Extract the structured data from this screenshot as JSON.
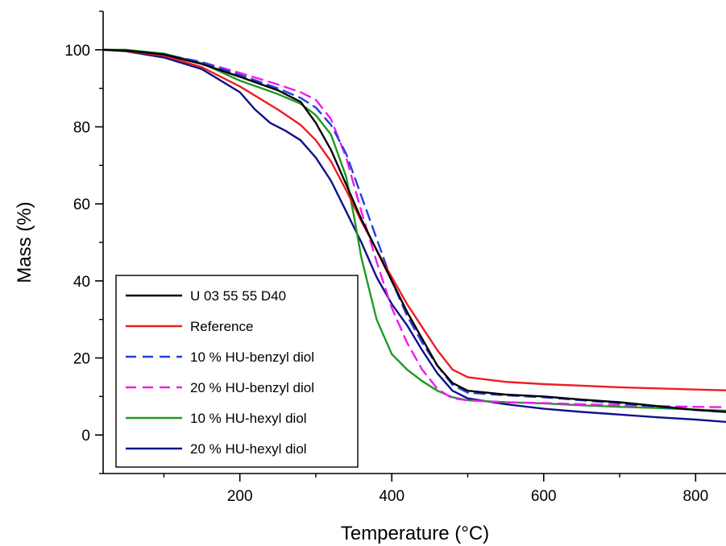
{
  "chart_data": {
    "type": "line",
    "title": "",
    "xlabel": "Temperature (°C)",
    "ylabel": "Mass (%)",
    "xlim": [
      20,
      840
    ],
    "ylim": [
      -10,
      110
    ],
    "xticks": [
      200,
      400,
      600,
      800
    ],
    "yticks": [
      0,
      20,
      40,
      60,
      80,
      100
    ],
    "legend_position": "bottom-left",
    "grid": false,
    "series": [
      {
        "name": "U 03 55 55 D40",
        "color": "#000000",
        "dash": "solid",
        "x": [
          20,
          50,
          100,
          150,
          200,
          250,
          280,
          300,
          320,
          340,
          360,
          380,
          400,
          420,
          440,
          460,
          480,
          500,
          550,
          600,
          650,
          700,
          750,
          800,
          840
        ],
        "y": [
          100,
          99.8,
          98.8,
          96.3,
          93,
          89.5,
          86.5,
          81,
          74,
          65,
          56,
          48,
          40,
          32,
          25,
          18,
          13.5,
          11.5,
          10.5,
          10,
          9.2,
          8.5,
          7.5,
          6.5,
          6
        ]
      },
      {
        "name": "Reference",
        "color": "#ee1c25",
        "dash": "solid",
        "x": [
          20,
          50,
          100,
          150,
          200,
          250,
          280,
          300,
          320,
          340,
          360,
          380,
          400,
          420,
          440,
          460,
          480,
          500,
          550,
          600,
          650,
          700,
          750,
          800,
          840
        ],
        "y": [
          100,
          99.7,
          98.5,
          95.5,
          90.5,
          84.5,
          80.5,
          76.5,
          71,
          63.5,
          55.5,
          48,
          41,
          34,
          28,
          22,
          17,
          15,
          13.8,
          13.2,
          12.8,
          12.4,
          12.1,
          11.8,
          11.6
        ]
      },
      {
        "name": "10 % HU-benzyl diol",
        "color": "#1f3fe0",
        "dash": "dashed",
        "x": [
          20,
          50,
          100,
          150,
          200,
          250,
          280,
          300,
          320,
          340,
          360,
          380,
          400,
          420,
          440,
          460,
          480,
          500,
          550,
          600,
          650,
          700,
          750,
          800,
          840
        ],
        "y": [
          100,
          99.8,
          98.8,
          96.8,
          93.5,
          90,
          87.5,
          85,
          80.5,
          73,
          62,
          51,
          40,
          31,
          24,
          18,
          13,
          11,
          10.3,
          9.8,
          9,
          8.2,
          7.3,
          6.5,
          6
        ]
      },
      {
        "name": "20 % HU-benzyl diol",
        "color": "#ee1cee",
        "dash": "dashed",
        "x": [
          20,
          50,
          100,
          150,
          200,
          250,
          280,
          300,
          320,
          340,
          360,
          380,
          400,
          420,
          440,
          460,
          480,
          500,
          550,
          600,
          650,
          700,
          750,
          800,
          840
        ],
        "y": [
          100,
          99.8,
          98.8,
          96.8,
          94,
          91,
          89,
          87,
          82,
          72,
          58,
          45,
          33,
          24,
          17,
          12,
          9.5,
          9,
          8.5,
          8.3,
          8,
          7.7,
          7.5,
          7.3,
          7.2
        ]
      },
      {
        "name": "10 % HU-hexyl diol",
        "color": "#1f9a1f",
        "dash": "solid",
        "x": [
          20,
          50,
          100,
          150,
          200,
          250,
          280,
          300,
          320,
          340,
          350,
          360,
          380,
          400,
          420,
          440,
          460,
          480,
          500,
          550,
          600,
          650,
          700,
          750,
          800,
          840
        ],
        "y": [
          100,
          100,
          99,
          96.5,
          92,
          88.5,
          86,
          83,
          78,
          67,
          57,
          46,
          30,
          21,
          17,
          14,
          11.5,
          9.8,
          9,
          8.5,
          8.2,
          7.7,
          7.3,
          7,
          6.6,
          6.3
        ]
      },
      {
        "name": "20 % HU-hexyl diol",
        "color": "#10108c",
        "dash": "solid",
        "x": [
          20,
          50,
          100,
          150,
          200,
          220,
          240,
          260,
          280,
          300,
          320,
          340,
          360,
          380,
          400,
          420,
          440,
          460,
          480,
          500,
          550,
          600,
          650,
          700,
          750,
          800,
          840
        ],
        "y": [
          100,
          99.6,
          98,
          95,
          89,
          84.5,
          81,
          79,
          76.5,
          72,
          66,
          58,
          50,
          41,
          34,
          28.5,
          22,
          16,
          11.5,
          9.5,
          8,
          6.8,
          6,
          5.3,
          4.6,
          4,
          3.4
        ]
      }
    ]
  }
}
